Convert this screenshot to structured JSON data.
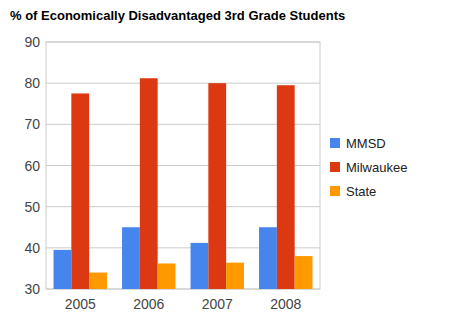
{
  "chart_data": {
    "type": "bar",
    "title": "% of Economically Disadvantaged 3rd Grade Students",
    "categories": [
      "2005",
      "2006",
      "2007",
      "2008"
    ],
    "series": [
      {
        "name": "MMSD",
        "color": "#4684ee",
        "values": [
          39.5,
          45,
          41.2,
          45
        ]
      },
      {
        "name": "Milwaukee",
        "color": "#dc3912",
        "values": [
          77.5,
          81.2,
          80,
          79.5
        ]
      },
      {
        "name": "State",
        "color": "#ff9900",
        "values": [
          34,
          36.2,
          36.4,
          38
        ]
      }
    ],
    "ylim": [
      30,
      90
    ],
    "yticks": [
      30,
      40,
      50,
      60,
      70,
      80,
      90
    ],
    "grid": true,
    "legend": "right"
  }
}
